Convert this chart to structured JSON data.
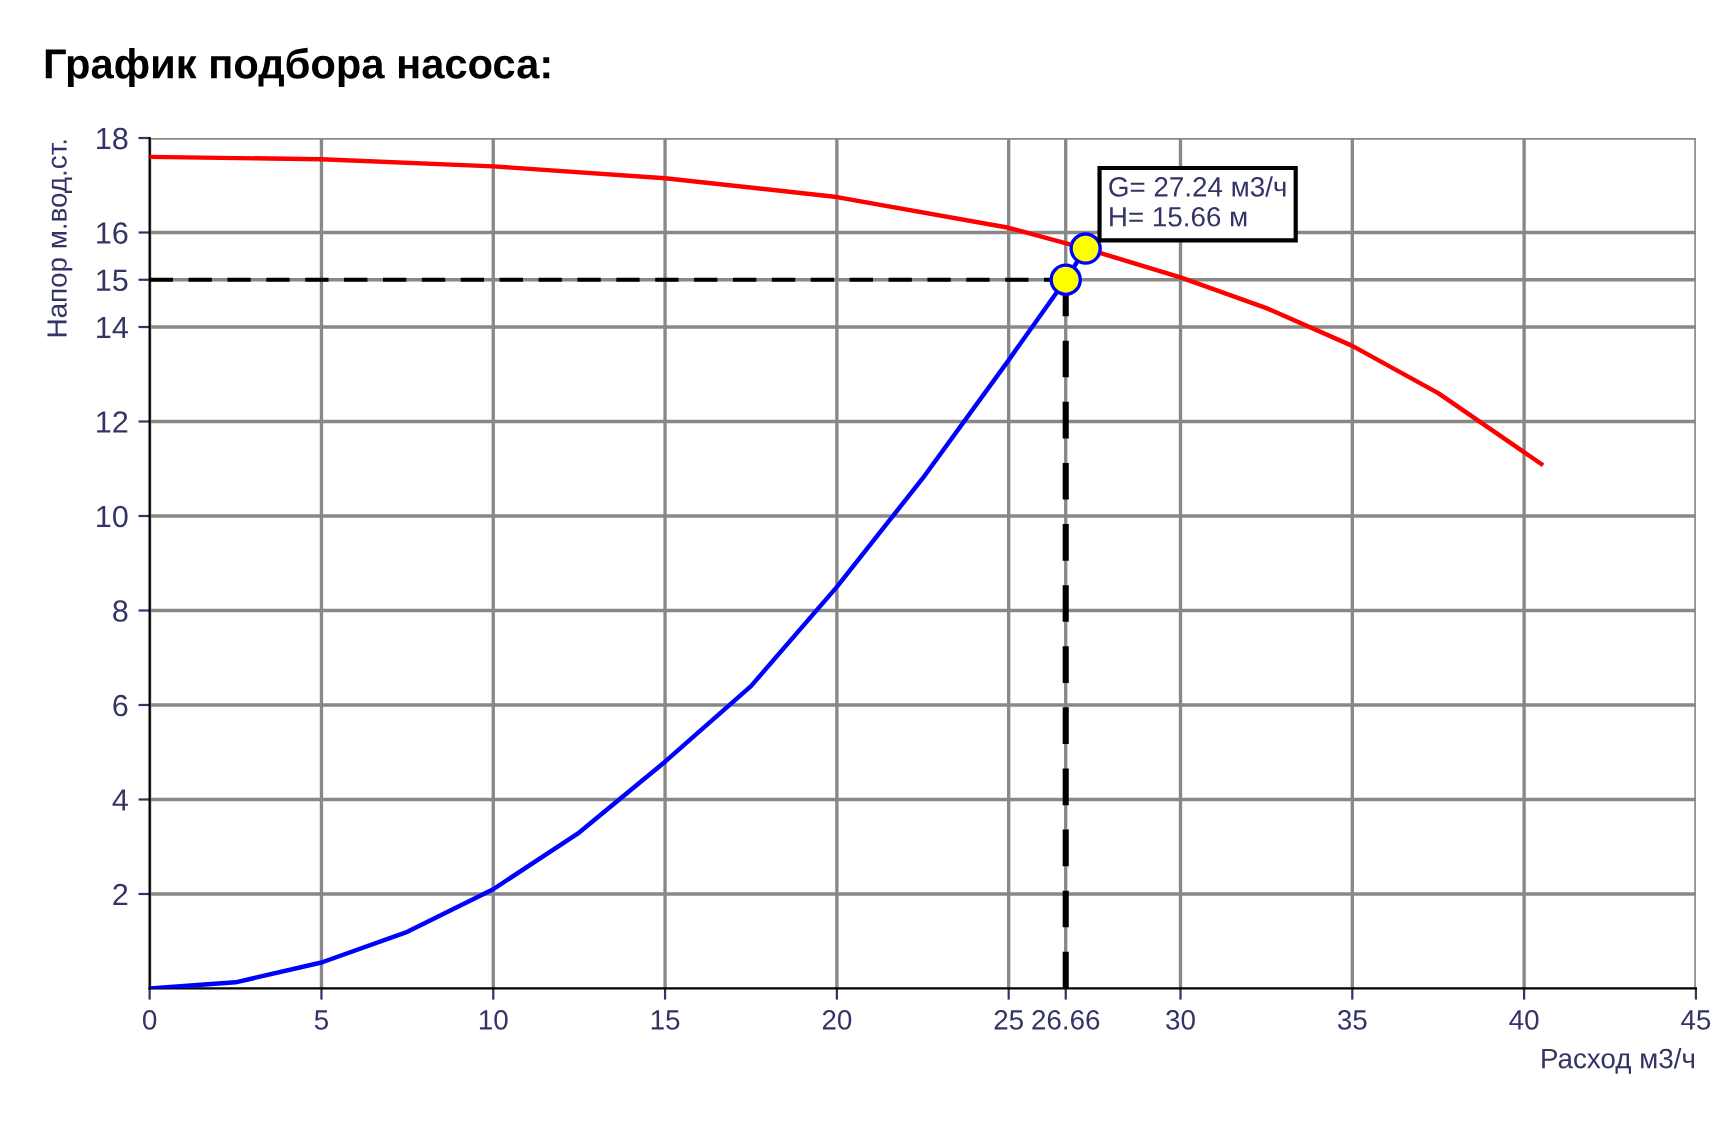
{
  "chart_data": {
    "type": "line",
    "title": "График подбора насоса:",
    "xlabel": "Расход м3/ч",
    "ylabel": "Напор м.вод.ст.",
    "xlim": [
      0,
      45
    ],
    "ylim": [
      0,
      18
    ],
    "xticks": [
      0,
      5,
      10,
      15,
      20,
      25,
      26.66,
      30,
      35,
      40,
      45
    ],
    "yticks": [
      2,
      4,
      6,
      8,
      10,
      12,
      14,
      15,
      16,
      18
    ],
    "grid": true,
    "marker": "none",
    "line_style": "solid",
    "series": [
      {
        "color": "#ff0000",
        "x": [
          0,
          5,
          10,
          15,
          20,
          25,
          27.24,
          30,
          32.5,
          35,
          37.5,
          40.5
        ],
        "values": [
          17.6,
          17.55,
          17.4,
          17.15,
          16.75,
          16.1,
          15.66,
          15.05,
          14.4,
          13.6,
          12.6,
          11.1
        ]
      },
      {
        "color": "#0000ff",
        "x": [
          0,
          2.5,
          5,
          7.5,
          10,
          12.5,
          15,
          17.5,
          20,
          22.5,
          25,
          26.66,
          27.24
        ],
        "values": [
          0,
          0.13,
          0.55,
          1.2,
          2.1,
          3.3,
          4.8,
          6.4,
          8.5,
          10.8,
          13.3,
          15,
          15.66
        ]
      },
      {
        "type": "scatter",
        "marker": "circle",
        "color": "#ffff00",
        "x": [
          26.66,
          27.24
        ],
        "values": [
          15,
          15.66
        ]
      }
    ],
    "ref_lines": [
      {
        "axis": "y",
        "value": 15,
        "line_style": "dashed",
        "color": "#000000"
      },
      {
        "axis": "x",
        "value": 26.66,
        "line_style": "dashed",
        "color": "#000000"
      }
    ],
    "annotations": [
      {
        "text": "G= 27.24 м3/ч\nH= 15.66 м",
        "x": 27.24,
        "y": 15.66
      }
    ]
  }
}
